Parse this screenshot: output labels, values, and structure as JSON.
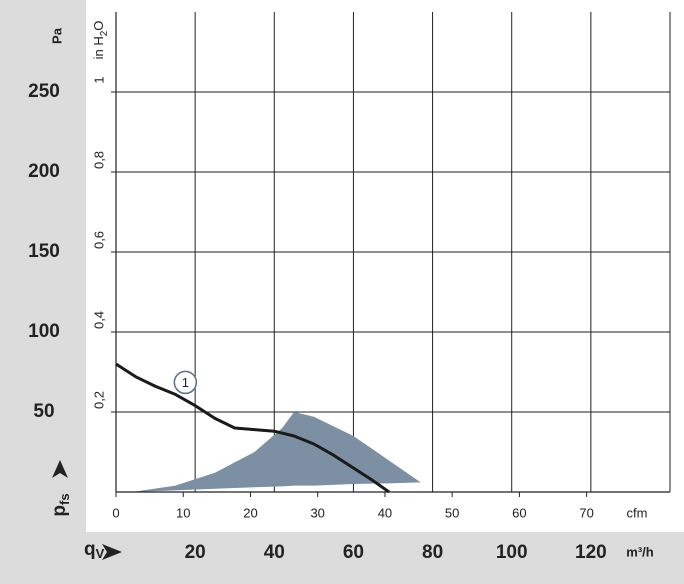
{
  "chart_data": {
    "type": "line",
    "x_label": {
      "main": "q",
      "sub": "V"
    },
    "x_unit": "m³/h",
    "x2_unit": "cfm",
    "y_label": {
      "main": "p",
      "sub": "fs"
    },
    "y_unit": "Pa",
    "y2_unit": {
      "a": "in H",
      "sub": "2",
      "b": "O"
    },
    "xlim": [
      0,
      140
    ],
    "xticks": [
      20,
      40,
      60,
      80,
      100,
      120
    ],
    "x2lim": [
      0,
      82.4
    ],
    "x2ticks": [
      0,
      10,
      20,
      30,
      40,
      50,
      60,
      70
    ],
    "ylim": [
      0,
      300
    ],
    "yticks": [
      50,
      100,
      150,
      200,
      250
    ],
    "y2lim": [
      0,
      1.2
    ],
    "y2ticks": [
      {
        "value": 0.2,
        "label": "0,2"
      },
      {
        "value": 0.4,
        "label": "0,4"
      },
      {
        "value": 0.6,
        "label": "0,6"
      },
      {
        "value": 0.8,
        "label": "0,8"
      },
      1
    ],
    "grid": true,
    "series": [
      {
        "name": "1",
        "color": "#1a1a1a",
        "x": [
          0,
          5,
          10,
          15,
          20,
          25,
          30,
          35,
          40,
          45,
          50,
          55,
          60,
          65,
          69
        ],
        "values": [
          80,
          72,
          66,
          61,
          54,
          46,
          40,
          39,
          38,
          35,
          30,
          23,
          15,
          7,
          0
        ]
      }
    ],
    "area": {
      "color": "#7d8fa3",
      "x": [
        4,
        15,
        25,
        35,
        42,
        45,
        50,
        60,
        70,
        77
      ],
      "upper": [
        0,
        4,
        12,
        25,
        40,
        50,
        47,
        35,
        18,
        6
      ],
      "lower": [
        0,
        1,
        2,
        3,
        3.5,
        4,
        4,
        5,
        5.5,
        6
      ]
    }
  }
}
